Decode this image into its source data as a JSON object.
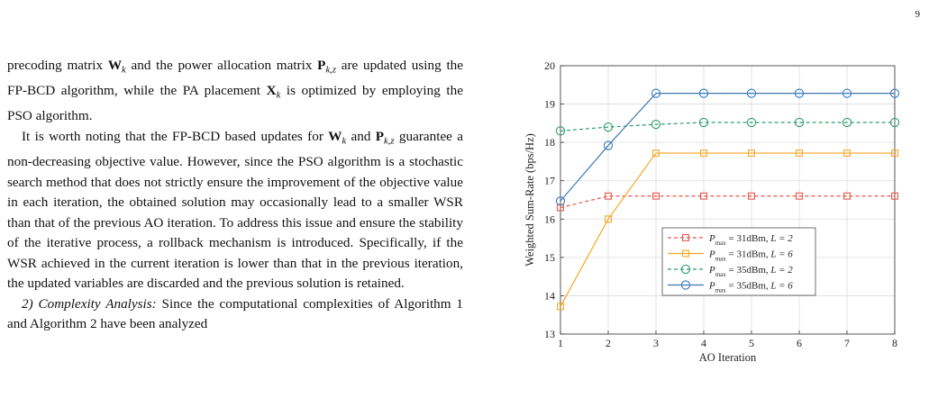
{
  "page_number": "9",
  "text": {
    "p1_a": "precoding matrix ",
    "p1_W": "W",
    "p1_k1": "k",
    "p1_b": " and the power allocation matrix ",
    "p1_P": "P",
    "p1_kz": "k,z",
    "p1_c": " are updated using the FP-BCD algorithm, while the PA placement ",
    "p1_X": "X",
    "p1_k2": "k",
    "p1_d": " is optimized by employing the PSO algorithm.",
    "p2_a": "It is worth noting that the FP-BCD based updates for ",
    "p2_W": "W",
    "p2_k": "k",
    "p2_b": " and ",
    "p2_P": "P",
    "p2_kz": "k,z",
    "p2_c": " guarantee a non-decreasing objective value. However, since the PSO algorithm is a stochastic search method that does not strictly ensure the improvement of the objective value in each iteration, the obtained solution may occasionally lead to a smaller WSR than that of the previous AO iteration. To address this issue and ensure the stability of the iterative process, a rollback mechanism is introduced. Specifically, if the WSR achieved in the current iteration is lower than that in the previous iteration, the updated variables are discarded and the previous solution is retained.",
    "p3_head": "2) Complexity Analysis:",
    "p3_body": " Since the computational complexities of Algorithm 1 and Algorithm 2 have been analyzed"
  },
  "chart_data": {
    "type": "line",
    "xlabel": "AO Iteration",
    "ylabel": "Weighted Sum-Rate (bps/Hz)",
    "x": [
      1,
      2,
      3,
      4,
      5,
      6,
      7,
      8
    ],
    "xlim": [
      1,
      8
    ],
    "ylim": [
      13,
      20
    ],
    "xticks": [
      "1",
      "2",
      "3",
      "4",
      "5",
      "6",
      "7",
      "8"
    ],
    "yticks": [
      "13",
      "14",
      "15",
      "16",
      "17",
      "18",
      "19",
      "20"
    ],
    "grid": true,
    "legend_position": "lower-right",
    "series": [
      {
        "name": "P_max = 31dBm, L = 2",
        "pmax": "= 31dBm,",
        "L": "L = 2",
        "color": "#e8554e",
        "dash": "4,3",
        "marker": "square",
        "values": [
          16.3,
          16.6,
          16.6,
          16.6,
          16.6,
          16.6,
          16.6,
          16.6
        ]
      },
      {
        "name": "P_max = 31dBm, L = 6",
        "pmax": "= 31dBm,",
        "L": "L = 6",
        "color": "#f5a623",
        "dash": "",
        "marker": "square",
        "values": [
          13.72,
          16.0,
          17.72,
          17.72,
          17.72,
          17.72,
          17.72,
          17.72
        ]
      },
      {
        "name": "P_max = 35dBm, L = 2",
        "pmax": "= 35dBm,",
        "L": "L = 2",
        "color": "#2e9e6b",
        "dash": "4,3",
        "marker": "circle",
        "values": [
          18.3,
          18.4,
          18.47,
          18.52,
          18.52,
          18.52,
          18.52,
          18.52
        ]
      },
      {
        "name": "P_max = 35dBm, L = 6",
        "pmax": "= 35dBm,",
        "L": "L = 6",
        "color": "#3a78b8",
        "dash": "",
        "marker": "circle",
        "values": [
          16.47,
          17.92,
          19.28,
          19.28,
          19.28,
          19.28,
          19.28,
          19.28
        ]
      }
    ]
  }
}
